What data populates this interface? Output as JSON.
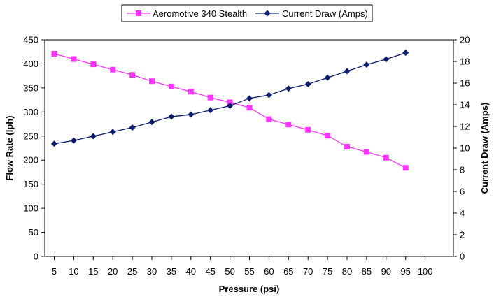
{
  "chart_data": {
    "type": "line",
    "xlabel": "Pressure (psi)",
    "ylabel": "Flow Rate (lph)",
    "y2label": "Current Draw (Amps)",
    "x_ticks": [
      5,
      10,
      15,
      20,
      25,
      30,
      35,
      40,
      45,
      50,
      55,
      60,
      65,
      70,
      75,
      80,
      85,
      90,
      95,
      100
    ],
    "ylim": [
      0,
      450
    ],
    "y_ticks": [
      0,
      50,
      100,
      150,
      200,
      250,
      300,
      350,
      400,
      450
    ],
    "y2lim": [
      0,
      20
    ],
    "y2_ticks": [
      0,
      2,
      4,
      6,
      8,
      10,
      12,
      14,
      16,
      18,
      20
    ],
    "grid": false,
    "legend_position": "top",
    "x": [
      5,
      10,
      15,
      20,
      25,
      30,
      35,
      40,
      45,
      50,
      55,
      60,
      65,
      70,
      75,
      80,
      85,
      90,
      95
    ],
    "series": [
      {
        "name": "Aeromotive 340 Stealth",
        "axis": "left",
        "color": "#ff33ff",
        "marker": "square",
        "values": [
          421,
          410,
          399,
          388,
          377,
          364,
          353,
          342,
          330,
          320,
          309,
          285,
          274,
          263,
          251,
          228,
          217,
          205,
          184
        ]
      },
      {
        "name": "Current Draw (Amps)",
        "axis": "right",
        "color": "#0a1c6e",
        "marker": "diamond",
        "values": [
          10.4,
          10.7,
          11.1,
          11.5,
          11.9,
          12.4,
          12.9,
          13.1,
          13.5,
          13.9,
          14.6,
          14.9,
          15.5,
          15.9,
          16.5,
          17.1,
          17.7,
          18.2,
          18.8
        ]
      }
    ]
  }
}
